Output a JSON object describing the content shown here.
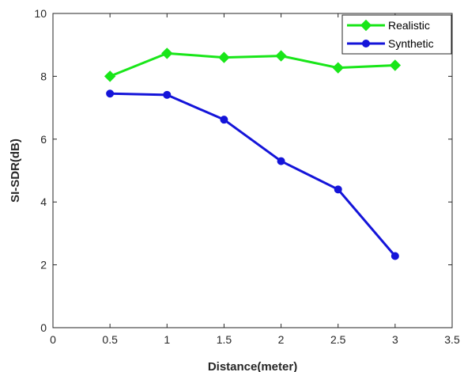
{
  "chart_data": {
    "type": "line",
    "title": "",
    "xlabel": "Distance(meter)",
    "ylabel": "SI-SDR(dB)",
    "xlim": [
      0,
      3.5
    ],
    "ylim": [
      0,
      10
    ],
    "xticks": [
      0,
      0.5,
      1,
      1.5,
      2,
      2.5,
      3,
      3.5
    ],
    "xtick_labels": [
      "0",
      "0.5",
      "1",
      "1.5",
      "2",
      "2.5",
      "3",
      "3.5"
    ],
    "yticks": [
      0,
      2,
      4,
      6,
      8,
      10
    ],
    "ytick_labels": [
      "0",
      "2",
      "4",
      "6",
      "8",
      "10"
    ],
    "grid": false,
    "legend_position": "top-right",
    "x": [
      0.5,
      1,
      1.5,
      2,
      2.5,
      3
    ],
    "series": [
      {
        "name": "Realistic",
        "color": "#19e619",
        "marker": "diamond",
        "values": [
          8.0,
          8.73,
          8.6,
          8.65,
          8.27,
          8.35
        ]
      },
      {
        "name": "Synthetic",
        "color": "#1414d9",
        "marker": "circle",
        "values": [
          7.45,
          7.41,
          6.62,
          5.3,
          4.4,
          2.28
        ]
      }
    ]
  }
}
